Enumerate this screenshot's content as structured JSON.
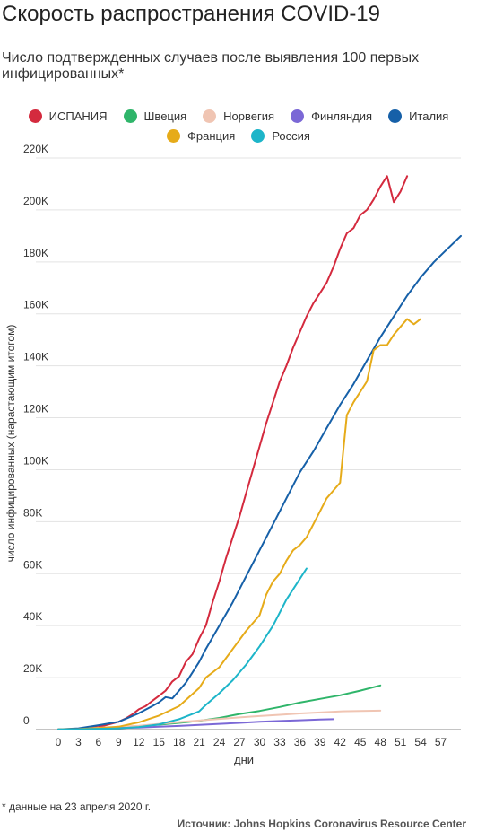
{
  "header": {
    "title": "Скорость распространения COVID-19",
    "subtitle": "Число подтвержденных случаев после выявления 100 первых инфицированных*"
  },
  "footer": {
    "footnote": "* данные на 23 апреля 2020 г.",
    "source": "Источник: Johns Hopkins Coronavirus Resource Center"
  },
  "chart_data": {
    "type": "line",
    "title": "Скорость распространения COVID-19",
    "subtitle": "Число подтвержденных случаев после выявления 100 первых инфицированных*",
    "xlabel": "дни",
    "ylabel": "число инфицированных (нарастающим итогом)",
    "xlim": [
      0,
      60
    ],
    "ylim": [
      0,
      220000
    ],
    "x_ticks": [
      0,
      3,
      6,
      9,
      12,
      15,
      18,
      21,
      24,
      27,
      30,
      33,
      36,
      39,
      42,
      45,
      48,
      51,
      54,
      57
    ],
    "y_ticks": [
      0,
      20000,
      40000,
      60000,
      80000,
      100000,
      120000,
      140000,
      160000,
      180000,
      200000,
      220000
    ],
    "y_tick_labels": [
      "0",
      "20K",
      "40K",
      "60K",
      "80K",
      "100K",
      "120K",
      "140K",
      "160K",
      "180K",
      "200K",
      "220K"
    ],
    "grid": true,
    "legend_position": "top",
    "series": [
      {
        "name": "ИСПАНИЯ",
        "color": "#d42a3e",
        "x": [
          0,
          3,
          6,
          9,
          10,
          11,
          12,
          13,
          14,
          15,
          16,
          17,
          18,
          19,
          20,
          21,
          22,
          23,
          24,
          25,
          26,
          27,
          28,
          29,
          30,
          31,
          32,
          33,
          34,
          35,
          36,
          37,
          38,
          39,
          40,
          41,
          42,
          43,
          44,
          45,
          46,
          47,
          48,
          49,
          50,
          51,
          52
        ],
        "y": [
          100,
          200,
          1000,
          3000,
          4200,
          5800,
          7800,
          9000,
          11000,
          13000,
          15000,
          18500,
          20500,
          26000,
          29000,
          35000,
          40000,
          49000,
          57000,
          66000,
          74000,
          82000,
          91000,
          100000,
          109000,
          118000,
          126000,
          134000,
          140000,
          147000,
          153000,
          159000,
          164000,
          168000,
          172000,
          178000,
          185000,
          191000,
          193000,
          198000,
          200000,
          204000,
          209000,
          213000,
          203000,
          207000,
          213000
        ]
      },
      {
        "name": "Швеция",
        "color": "#2fb56a",
        "x": [
          0,
          3,
          6,
          9,
          12,
          15,
          18,
          21,
          24,
          27,
          30,
          33,
          36,
          39,
          42,
          45,
          48
        ],
        "y": [
          100,
          300,
          600,
          900,
          1300,
          1900,
          2600,
          3400,
          4500,
          6000,
          7200,
          8700,
          10400,
          11800,
          13200,
          15000,
          17000
        ]
      },
      {
        "name": "Норвегия",
        "color": "#f0c5b3",
        "x": [
          0,
          3,
          6,
          9,
          12,
          15,
          18,
          21,
          24,
          27,
          30,
          33,
          36,
          39,
          42,
          45,
          48
        ],
        "y": [
          100,
          300,
          700,
          1100,
          1500,
          2200,
          2900,
          3500,
          4100,
          4700,
          5200,
          5700,
          6200,
          6600,
          7000,
          7200,
          7300
        ]
      },
      {
        "name": "Финляндия",
        "color": "#7b68d6",
        "x": [
          0,
          3,
          6,
          9,
          12,
          15,
          18,
          21,
          24,
          27,
          30,
          33,
          36,
          39,
          41
        ],
        "y": [
          100,
          200,
          400,
          600,
          800,
          1100,
          1400,
          1800,
          2200,
          2600,
          3000,
          3300,
          3600,
          3900,
          4000
        ]
      },
      {
        "name": "Италия",
        "color": "#1660a8",
        "x": [
          0,
          3,
          6,
          9,
          12,
          14,
          15,
          16,
          17,
          18,
          19,
          20,
          21,
          22,
          24,
          26,
          28,
          30,
          32,
          34,
          36,
          38,
          40,
          42,
          44,
          46,
          48,
          50,
          52,
          54,
          56,
          58,
          60
        ],
        "y": [
          100,
          500,
          1700,
          3000,
          6300,
          9000,
          10500,
          12500,
          12000,
          15000,
          18000,
          22000,
          26000,
          31000,
          40000,
          49000,
          59000,
          69000,
          79000,
          89000,
          99000,
          107000,
          116000,
          125000,
          133000,
          142000,
          151000,
          159000,
          167000,
          174000,
          180000,
          185000,
          190000
        ]
      },
      {
        "name": "Франция",
        "color": "#e6ab19",
        "x": [
          0,
          3,
          6,
          9,
          12,
          15,
          18,
          21,
          22,
          24,
          26,
          28,
          30,
          31,
          32,
          33,
          34,
          35,
          36,
          37,
          38,
          39,
          40,
          41,
          42,
          43,
          44,
          45,
          46,
          47,
          48,
          49,
          50,
          51,
          52,
          53,
          54
        ],
        "y": [
          100,
          200,
          600,
          1100,
          2800,
          5400,
          9000,
          16000,
          20000,
          24000,
          31000,
          38000,
          44000,
          52000,
          57000,
          60000,
          65000,
          69000,
          71000,
          74000,
          79000,
          84000,
          89000,
          92000,
          95000,
          121000,
          126000,
          130000,
          134000,
          146000,
          148000,
          148000,
          152000,
          155000,
          158000,
          156000,
          158000
        ]
      },
      {
        "name": "Россия",
        "color": "#1db5c9",
        "x": [
          0,
          3,
          6,
          9,
          12,
          15,
          18,
          21,
          22,
          24,
          26,
          28,
          30,
          32,
          34,
          36,
          37
        ],
        "y": [
          100,
          150,
          300,
          500,
          1000,
          2000,
          4000,
          7000,
          9500,
          14000,
          19000,
          25000,
          32000,
          40000,
          50000,
          58000,
          62000
        ]
      }
    ]
  }
}
